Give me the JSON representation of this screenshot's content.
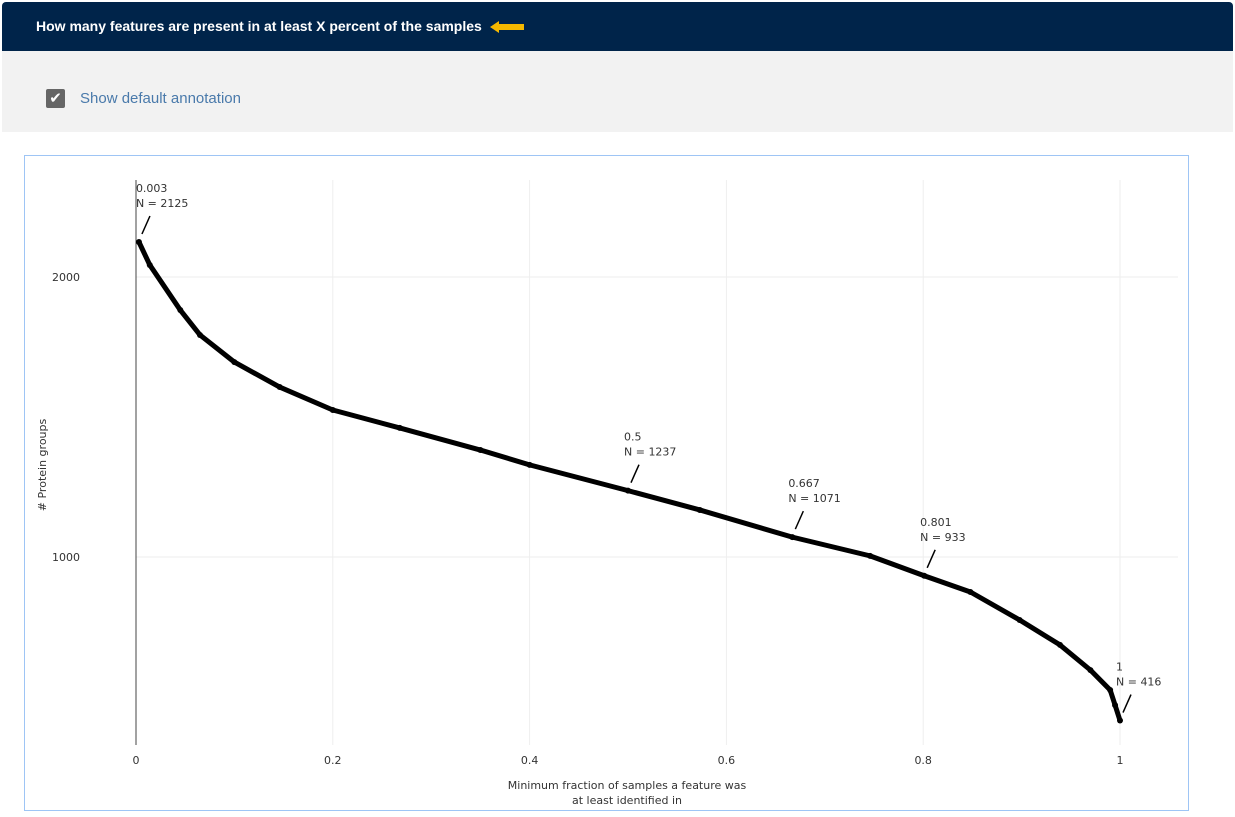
{
  "header": {
    "title": "How many features are present in at least X percent of the samples",
    "arrow_color": "#f5b800"
  },
  "controls": {
    "checkbox_label": "Show default annotation",
    "checked": true
  },
  "chart_data": {
    "type": "scatter",
    "xlabel": "Minimum fraction of samples a feature was at least identified in",
    "xlabel_lines": [
      "Minimum fraction of samples a feature was",
      "at least identified in"
    ],
    "ylabel": "# Protein groups",
    "xlim": [
      0,
      1
    ],
    "ylim": [
      380,
      2300
    ],
    "xticks": [
      0,
      0.2,
      0.4,
      0.6,
      0.8,
      1
    ],
    "xtick_labels": [
      "0",
      "0.2",
      "0.4",
      "0.6",
      "0.8",
      "1"
    ],
    "yticks": [
      1000,
      2000
    ],
    "ytick_labels": [
      "1000",
      "2000"
    ],
    "grid": true,
    "marker_color": "#000000",
    "x": [
      0.003,
      0.014,
      0.045,
      0.065,
      0.1,
      0.146,
      0.2,
      0.268,
      0.35,
      0.4,
      0.5,
      0.573,
      0.667,
      0.746,
      0.801,
      0.848,
      0.898,
      0.939,
      0.97,
      0.99,
      0.995,
      1
    ],
    "y": [
      2125,
      2043,
      1882,
      1793,
      1696,
      1607,
      1525,
      1461,
      1382,
      1329,
      1237,
      1168,
      1071,
      1004,
      933,
      875,
      775,
      686,
      596,
      525,
      471,
      416
    ],
    "annotations": [
      {
        "x": 0.003,
        "y": 2125,
        "line1": "0.003",
        "line2": "N = 2125"
      },
      {
        "x": 0.5,
        "y": 1237,
        "line1": "0.5",
        "line2": "N = 1237"
      },
      {
        "x": 0.667,
        "y": 1071,
        "line1": "0.667",
        "line2": "N = 1071"
      },
      {
        "x": 0.801,
        "y": 933,
        "line1": "0.801",
        "line2": "N = 933"
      },
      {
        "x": 1,
        "y": 416,
        "line1": "1",
        "line2": "N = 416"
      }
    ]
  }
}
